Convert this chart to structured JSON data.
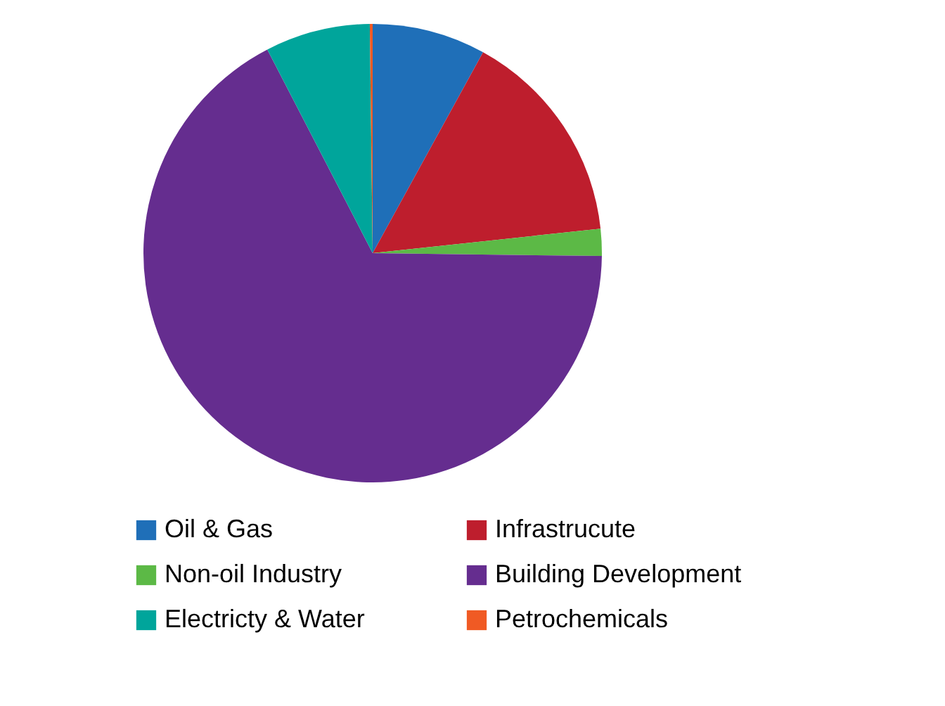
{
  "chart_data": {
    "type": "pie",
    "categories": [
      "Oil & Gas",
      "Infrastrucute",
      "Non-oil Industry",
      "Building Development",
      "Electricty & Water",
      "Petrochemicals"
    ],
    "values": [
      8,
      15.3,
      1.9,
      67.2,
      7.4,
      0.2
    ],
    "colors": [
      "#1f6fb8",
      "#be1e2d",
      "#5cb946",
      "#652d8f",
      "#00a59b",
      "#f05a24"
    ],
    "legend": "bottom"
  }
}
